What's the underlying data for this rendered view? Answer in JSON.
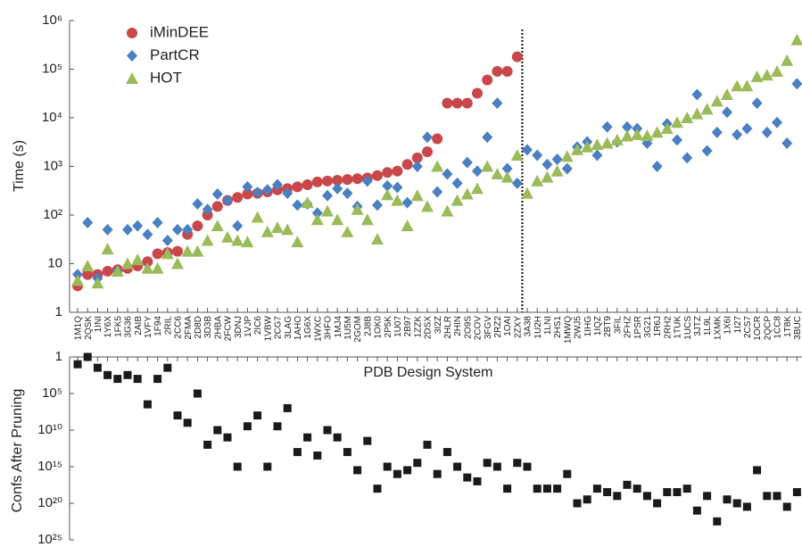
{
  "chart_data": [
    {
      "type": "scatter",
      "ylabel": "Time (s)",
      "log_y": true,
      "legend": "upper left",
      "ylim": [
        1,
        1000000
      ],
      "yticks": [
        1,
        10,
        {
          "value": 100,
          "label": "10²"
        },
        {
          "value": 1000,
          "label": "10³"
        },
        {
          "value": 10000,
          "label": "10⁴"
        },
        {
          "value": 100000,
          "label": "10⁵"
        },
        {
          "value": 1000000,
          "label": "10⁶"
        }
      ],
      "categories": [
        "1M1Q",
        "2QSK",
        "1INI",
        "1Y6X",
        "1FK5",
        "3G36",
        "2AIB",
        "1VFY",
        "1F94",
        "2RIL",
        "2CC6",
        "2FMA",
        "2D8D",
        "3D3B",
        "2HBA",
        "2FCW",
        "3DNJ",
        "1VJP",
        "2IC6",
        "1VBW",
        "2CG7",
        "3LAG",
        "1AHO",
        "1G6X",
        "1WXC",
        "3HFO",
        "1MJ4",
        "1U5M",
        "2GOM",
        "2J8B",
        "1OK0",
        "2P5K",
        "1U07",
        "2B97",
        "1ZZK",
        "2DSX",
        "3I2Z",
        "2HLR",
        "2HIN",
        "2O9S",
        "2COV",
        "3FGV",
        "2RZ2",
        "1OAI",
        "2ZXY",
        "3A38",
        "1U2H",
        "1LNI",
        "2HS1",
        "1MWQ",
        "2WJ5",
        "1IHG",
        "1IQZ",
        "2BT9",
        "3FIL",
        "2FHZ",
        "1PSR",
        "3G21",
        "1R6J",
        "2RH2",
        "1TUK",
        "1UCS",
        "3JTZ",
        "1L9L",
        "1XMK",
        "1X6I",
        "1I27",
        "2CS7",
        "1OCR",
        "2QCP",
        "1CC8",
        "1T8K",
        "3BUC"
      ],
      "series": [
        {
          "name": "iMinDEE",
          "color": "#c9474a",
          "marker": "circle",
          "values": [
            3.5,
            6,
            6,
            7,
            7.5,
            8,
            9,
            11,
            16,
            17,
            18,
            40,
            60,
            100,
            150,
            200,
            230,
            270,
            280,
            300,
            330,
            350,
            380,
            420,
            480,
            500,
            520,
            540,
            560,
            580,
            650,
            750,
            800,
            1100,
            1500,
            2000,
            3700,
            20000,
            20000,
            20000,
            32000,
            60000,
            90000,
            90000,
            180000,
            null,
            null,
            null,
            null,
            null,
            null,
            null,
            null,
            null,
            null,
            null,
            null,
            null,
            null,
            null,
            null,
            null,
            null,
            null,
            null,
            null,
            null,
            null,
            null,
            null,
            null,
            null,
            null
          ]
        },
        {
          "name": "PartCR",
          "color": "#4a7fc1",
          "marker": "diamond",
          "values": [
            6,
            70,
            5,
            50,
            7,
            50,
            60,
            40,
            70,
            30,
            50,
            50,
            170,
            130,
            270,
            200,
            60,
            380,
            290,
            330,
            420,
            280,
            160,
            170,
            110,
            250,
            350,
            280,
            150,
            500,
            160,
            400,
            370,
            180,
            1000,
            4000,
            300,
            700,
            450,
            1200,
            800,
            4000,
            20000,
            900,
            450,
            2200,
            1700,
            1100,
            1400,
            900,
            2500,
            3200,
            1700,
            6500,
            3200,
            6500,
            6000,
            3000,
            1000,
            7500,
            3500,
            1500,
            30000,
            2100,
            5000,
            13000,
            4500,
            6000,
            20000,
            5000,
            8000,
            3000,
            50000
          ]
        },
        {
          "name": "HOT",
          "color": "#9bbb59",
          "marker": "triangle",
          "values": [
            4.5,
            9,
            4,
            20,
            7,
            10,
            12,
            8,
            8,
            16,
            10,
            18,
            18,
            30,
            60,
            35,
            30,
            28,
            90,
            45,
            55,
            50,
            28,
            180,
            80,
            120,
            80,
            45,
            130,
            80,
            32,
            260,
            200,
            60,
            250,
            150,
            1000,
            120,
            200,
            270,
            350,
            1000,
            700,
            600,
            1700,
            280,
            500,
            600,
            800,
            1600,
            2200,
            2500,
            2800,
            3000,
            3500,
            4200,
            4500,
            4300,
            5000,
            6000,
            8000,
            10000,
            12000,
            15000,
            22000,
            30000,
            45000,
            45000,
            70000,
            75000,
            90000,
            150000,
            400000
          ]
        }
      ]
    },
    {
      "type": "scatter",
      "xlabel": "PDB Design System",
      "ylabel": "Confs After Pruning",
      "log_y": true,
      "invert_y": true,
      "ylim": [
        1,
        1e+25
      ],
      "yticks": [
        1,
        {
          "value": 100000.0,
          "label": "10⁵"
        },
        {
          "value": 10000000000.0,
          "label": "10¹⁰"
        },
        {
          "value": 1000000000000000.0,
          "label": "10¹⁵"
        },
        {
          "value": 1e+20,
          "label": "10²⁰"
        },
        {
          "value": 1e+25,
          "label": "10²⁵"
        }
      ],
      "series": [
        {
          "color": "#1a1a1a",
          "marker": "square",
          "values": [
            10.0,
            1,
            30.0,
            300.0,
            1000.0,
            300.0,
            1000.0,
            3000000.0,
            1000.0,
            30.0,
            100000000.0,
            1000000000.0,
            100000.0,
            1000000000000.0,
            10000000000.0,
            100000000000.0,
            1000000000000000.0,
            3000000000.0,
            100000000.0,
            1000000000000000.0,
            3000000000.0,
            10000000.0,
            10000000000000.0,
            100000000000.0,
            30000000000000.0,
            10000000000.0,
            100000000000.0,
            10000000000000.0,
            3000000000000000.0,
            300000000000.0,
            1e+18,
            1000000000000000.0,
            1e+16,
            3000000000000000.0,
            300000000000000.0,
            1000000000000.0,
            1e+16,
            10000000000000.0,
            1000000000000000.0,
            3e+16,
            1e+17,
            300000000000000.0,
            1000000000000000.0,
            1e+18,
            300000000000000.0,
            1000000000000000.0,
            1e+18,
            1e+18,
            1e+18,
            1e+16,
            1e+20,
            3e+19,
            1e+18,
            3e+18,
            1e+19,
            3e+17,
            1e+18,
            1e+19,
            1e+20,
            3e+18,
            3e+18,
            1e+18,
            1e+21,
            1e+19,
            3e+22,
            3e+19,
            1e+20,
            3e+20,
            3000000000000000.0,
            1e+19,
            1e+19,
            3e+20,
            3e+18
          ]
        }
      ]
    }
  ]
}
